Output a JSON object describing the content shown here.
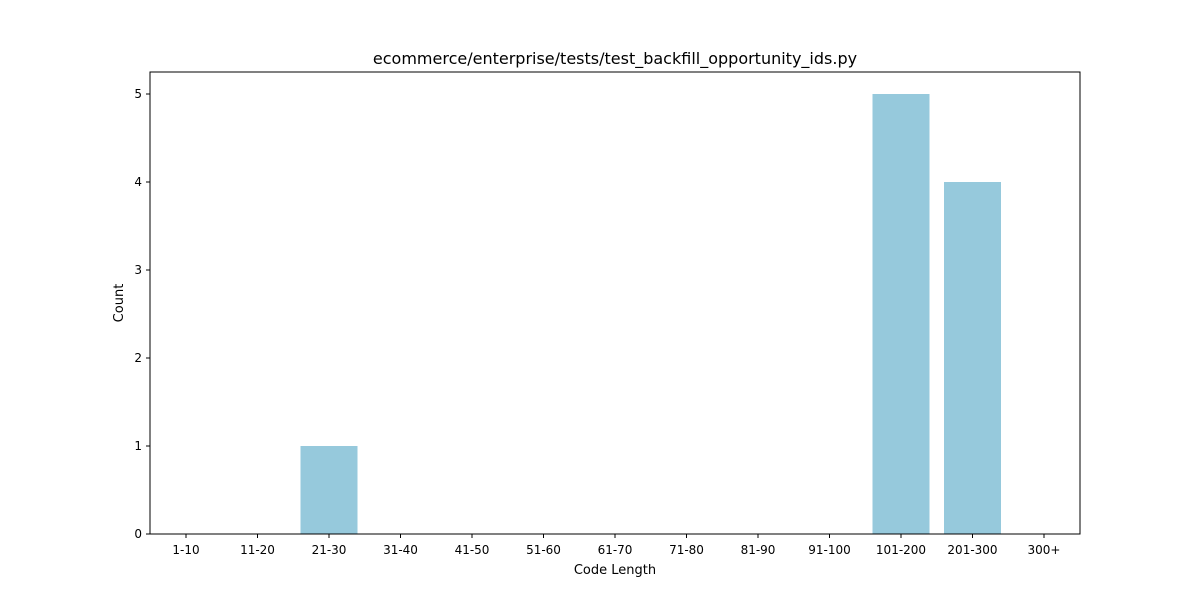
{
  "chart_data": {
    "type": "bar",
    "title": "ecommerce/enterprise/tests/test_backfill_opportunity_ids.py",
    "xlabel": "Code Length",
    "ylabel": "Count",
    "categories": [
      "1-10",
      "11-20",
      "21-30",
      "31-40",
      "41-50",
      "51-60",
      "61-70",
      "71-80",
      "81-90",
      "91-100",
      "101-200",
      "201-300",
      "300+"
    ],
    "values": [
      0,
      0,
      1,
      0,
      0,
      0,
      0,
      0,
      0,
      0,
      5,
      4,
      0
    ],
    "ylim": [
      0,
      5.25
    ],
    "yticks": [
      0,
      1,
      2,
      3,
      4,
      5
    ],
    "bar_color": "#96c9dc",
    "grid": false
  }
}
